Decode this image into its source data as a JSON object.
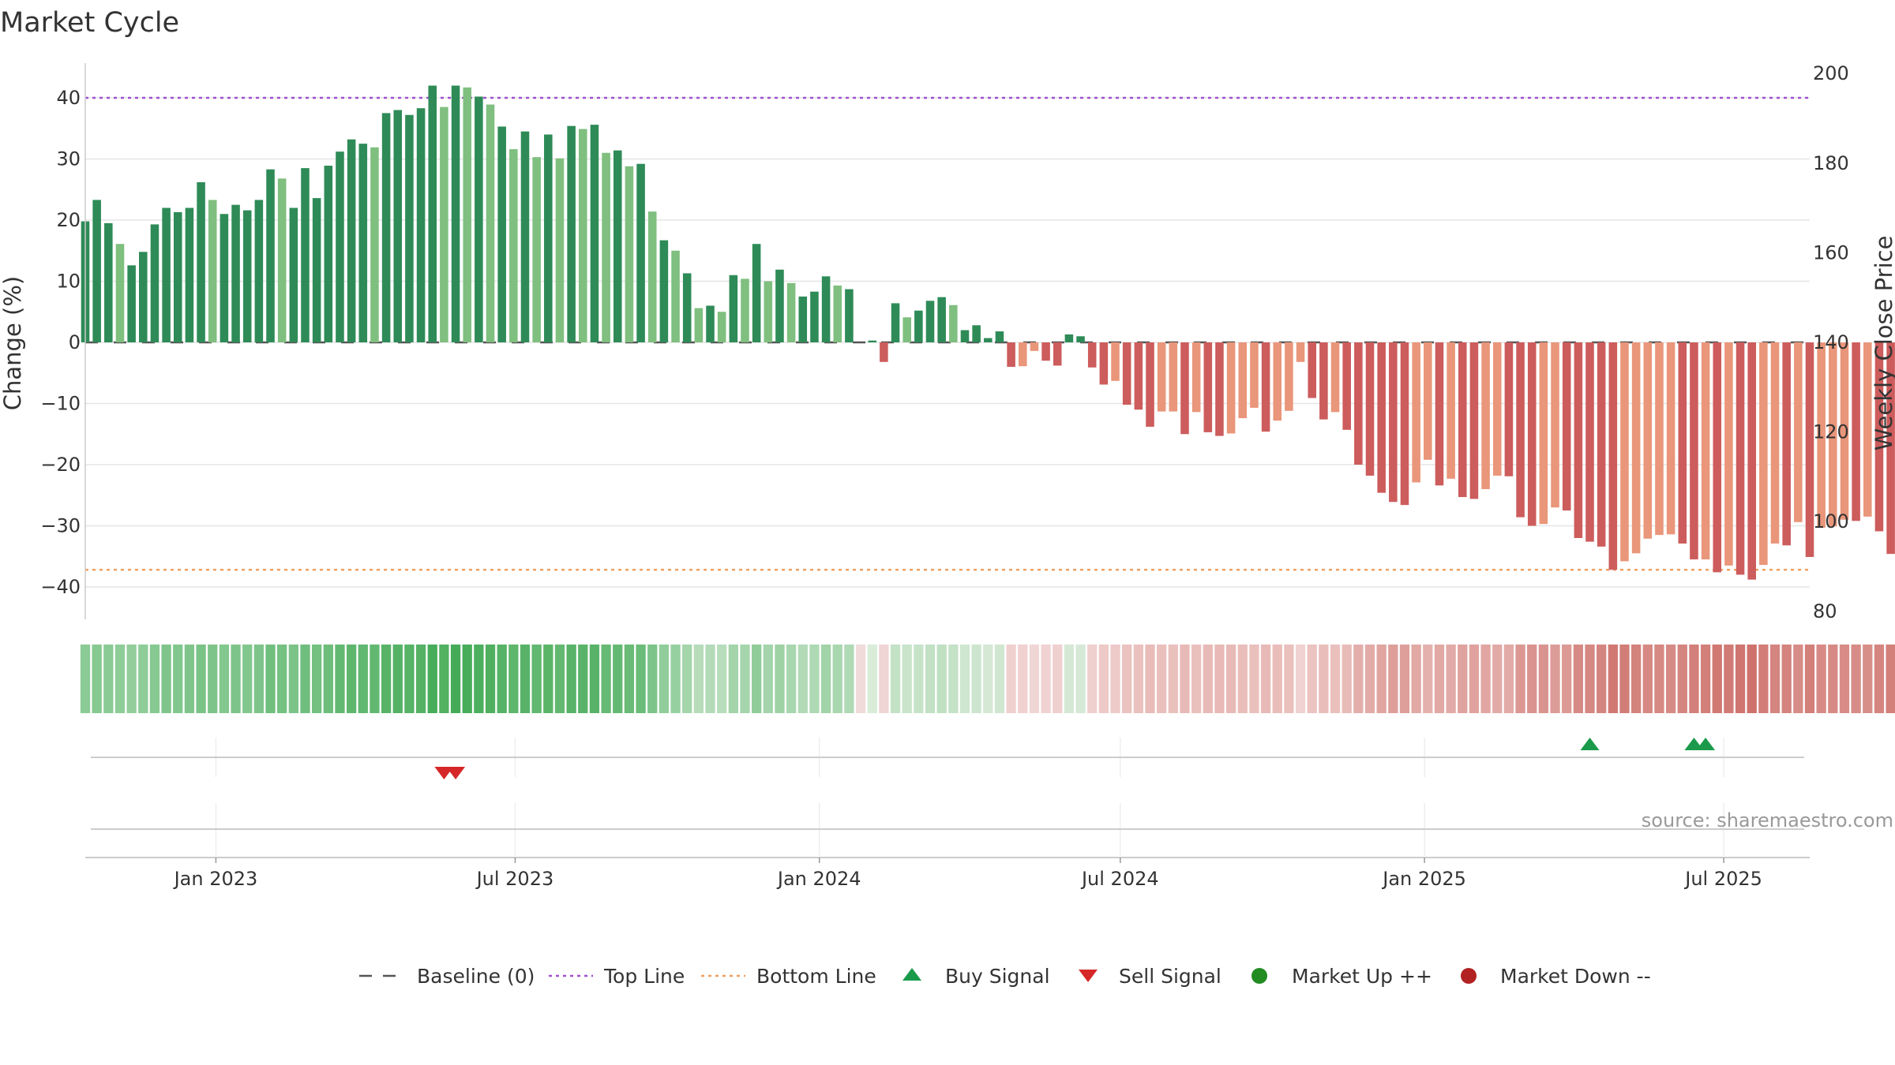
{
  "chart_data": {
    "type": "bar",
    "title": "Market Cycle",
    "ylabel": "Change (%)",
    "y2label": "Weekly Close Price",
    "ylim": [
      -45,
      45
    ],
    "y2lim": [
      80,
      200
    ],
    "yticks": [
      "40",
      "30",
      "20",
      "10",
      "0",
      "−10",
      "−20",
      "−30",
      "−40"
    ],
    "y2ticks": [
      "200",
      "180",
      "160",
      "140",
      "120",
      "100",
      "80"
    ],
    "x_start": "2022-10-14",
    "x_end": "2025-08-22",
    "xticks": [
      {
        "date": "2023-01-01",
        "label": "Jan 2023"
      },
      {
        "date": "2023-07-01",
        "label": "Jul 2023"
      },
      {
        "date": "2024-01-01",
        "label": "Jan 2024"
      },
      {
        "date": "2024-07-01",
        "label": "Jul 2024"
      },
      {
        "date": "2025-01-01",
        "label": "Jan 2025"
      },
      {
        "date": "2025-07-01",
        "label": "Jul 2025"
      }
    ],
    "top_line": 40,
    "bottom_line": -37.2,
    "colors": {
      "up_strong": "#2e8b57",
      "up_weak": "#7fbf7f",
      "down_strong": "#cd5c5c",
      "down_weak": "#e9967a",
      "top_line": "#a050d0",
      "bottom_line": "#f0a060",
      "baseline": "#555555",
      "buy": "#1a9a4a",
      "sell": "#d62728",
      "market_up": "#228b22",
      "market_down": "#b22222"
    },
    "weeks_start": "2022-10-14",
    "values": [
      19.8,
      23.3,
      19.5,
      16.1,
      12.6,
      14.8,
      19.3,
      22.0,
      21.3,
      22.0,
      26.2,
      23.3,
      21.0,
      22.5,
      21.6,
      23.3,
      28.3,
      26.8,
      22.0,
      28.5,
      23.6,
      28.9,
      31.2,
      33.2,
      32.5,
      31.9,
      37.5,
      38.0,
      37.2,
      38.3,
      42.0,
      38.5,
      42.0,
      41.7,
      40.2,
      38.9,
      35.3,
      31.6,
      34.5,
      30.3,
      34.0,
      30.1,
      35.4,
      34.9,
      35.6,
      31.0,
      31.4,
      28.8,
      29.2,
      21.4,
      16.7,
      15.0,
      11.3,
      5.6,
      6.0,
      5.0,
      11.0,
      10.4,
      16.1,
      10.0,
      11.9,
      9.7,
      7.5,
      8.3,
      10.8,
      9.3,
      8.7,
      0.0,
      0.3,
      -3.2,
      6.4,
      4.1,
      5.2,
      6.8,
      7.4,
      6.1,
      2.0,
      2.8,
      0.7,
      1.8,
      -4.0,
      -3.9,
      -1.4,
      -3.0,
      -3.8,
      1.3,
      1.0,
      -4.1,
      -6.9,
      -6.3,
      -10.2,
      -11.0,
      -13.8,
      -11.3,
      -11.3,
      -15.0,
      -11.4,
      -14.7,
      -15.3,
      -14.9,
      -12.4,
      -10.7,
      -14.6,
      -12.8,
      -11.2,
      -3.2,
      -9.1,
      -12.6,
      -11.4,
      -14.3,
      -20.0,
      -21.8,
      -24.6,
      -26.1,
      -26.6,
      -22.9,
      -19.2,
      -23.4,
      -22.3,
      -25.3,
      -25.6,
      -24.0,
      -21.8,
      -21.9,
      -28.6,
      -30.0,
      -29.7,
      -27.0,
      -27.5,
      -32.0,
      -32.6,
      -33.4,
      -37.2,
      -35.8,
      -34.5,
      -32.1,
      -31.5,
      -31.4,
      -32.9,
      -35.5,
      -35.5,
      -37.6,
      -36.5,
      -38.0,
      -38.8,
      -36.4,
      -32.9,
      -33.2,
      -29.4,
      -35.1,
      -30.3,
      -30.1,
      -29.0,
      -29.2,
      -28.5,
      -30.9,
      -34.6
    ],
    "cycle_strip_colors": [
      "#8acb95",
      "#86c991",
      "#8acb95",
      "#8ecc98",
      "#92cd9b",
      "#8ecc98",
      "#86c991",
      "#7fc58b",
      "#82c78e",
      "#7fc58b",
      "#7ac387",
      "#7ec48a",
      "#82c78e",
      "#7ec48a",
      "#82c78e",
      "#7ec48a",
      "#70bf7e",
      "#74c181",
      "#7cc389",
      "#6fbe7d",
      "#74c181",
      "#6dbd7b",
      "#64b972",
      "#5fb76e",
      "#61b870",
      "#63b871",
      "#58b367",
      "#55b265",
      "#57b366",
      "#55b265",
      "#48ad5a",
      "#52b162",
      "#46ab58",
      "#48ad5a",
      "#4caf5d",
      "#50b060",
      "#56b266",
      "#5db66c",
      "#58b368",
      "#61b870",
      "#5ab569",
      "#63b871",
      "#58b368",
      "#59b469",
      "#58b368",
      "#66ba74",
      "#64b972",
      "#69bb77",
      "#6abc78",
      "#7dc48a",
      "#90cd9a",
      "#97d0a0",
      "#a4d5ab",
      "#b6dcba",
      "#b3dbb8",
      "#b8ddbc",
      "#a3d4aa",
      "#a5d5ac",
      "#8fcc99",
      "#a4d4ab",
      "#9ed2a5",
      "#a8d6ae",
      "#b2dab7",
      "#aed9b4",
      "#a1d3a8",
      "#a9d7af",
      "#b0d9b5",
      "#f0dada",
      "#d8ecd8",
      "#efd5d4",
      "#c4e2c6",
      "#c9e4cb",
      "#c6e3c8",
      "#c2e1c4",
      "#c0e0c2",
      "#c4e2c6",
      "#cfe6d0",
      "#cde5ce",
      "#d4e8d4",
      "#d0e6d1",
      "#f0d0cf",
      "#f0d1d0",
      "#efd6d5",
      "#efd2d1",
      "#f0d0cf",
      "#d5e8d5",
      "#d6e9d6",
      "#efd0cf",
      "#edc9c7",
      "#edcac8",
      "#ebc2bf",
      "#eac1be",
      "#e9bcb9",
      "#eac0bd",
      "#eac0bd",
      "#e8bab7",
      "#eac0bd",
      "#e8bab7",
      "#e8b9b6",
      "#e8bab7",
      "#e9beba",
      "#eac0bd",
      "#e8bab7",
      "#e9bdba",
      "#eac0bd",
      "#efd2d1",
      "#ebc3c0",
      "#e9beba",
      "#eac0bd",
      "#e8bbb8",
      "#e3aeaa",
      "#e2aba7",
      "#e0a5a1",
      "#de9f9b",
      "#de9f9b",
      "#e1a8a4",
      "#e4b1ad",
      "#e1a8a4",
      "#e2aaa6",
      "#e0a29e",
      "#e0a29e",
      "#e1a6a2",
      "#e2aaa6",
      "#e2aaa6",
      "#db9792",
      "#da938e",
      "#da948f",
      "#dc9c97",
      "#dc9a95",
      "#d78a85",
      "#d68883",
      "#d58580",
      "#d17873",
      "#d27d78",
      "#d4827d",
      "#d68883",
      "#d68883",
      "#d68a85",
      "#d58580",
      "#d37f7a",
      "#d37f7a",
      "#d17873",
      "#d17b76",
      "#d07570",
      "#cf726d",
      "#d27d78",
      "#d58580",
      "#d4837e",
      "#d78c87",
      "#d37f7a",
      "#d78a85",
      "#d78a85",
      "#d78c87",
      "#d78c87",
      "#d78e89",
      "#d58580",
      "#d37f7a"
    ],
    "sell_signals": [
      "2023-05-19",
      "2023-05-26"
    ],
    "buy_signals": [
      "2025-04-11",
      "2025-06-13",
      "2025-06-20"
    ],
    "source": "source: sharemaestro.com",
    "legend": [
      {
        "key": "baseline",
        "label": "Baseline (0)"
      },
      {
        "key": "top_line",
        "label": "Top Line"
      },
      {
        "key": "bottom_line",
        "label": "Bottom Line"
      },
      {
        "key": "buy",
        "label": "Buy Signal"
      },
      {
        "key": "sell",
        "label": "Sell Signal"
      },
      {
        "key": "market_up",
        "label": "Market Up ++"
      },
      {
        "key": "market_down",
        "label": "Market Down --"
      }
    ]
  }
}
